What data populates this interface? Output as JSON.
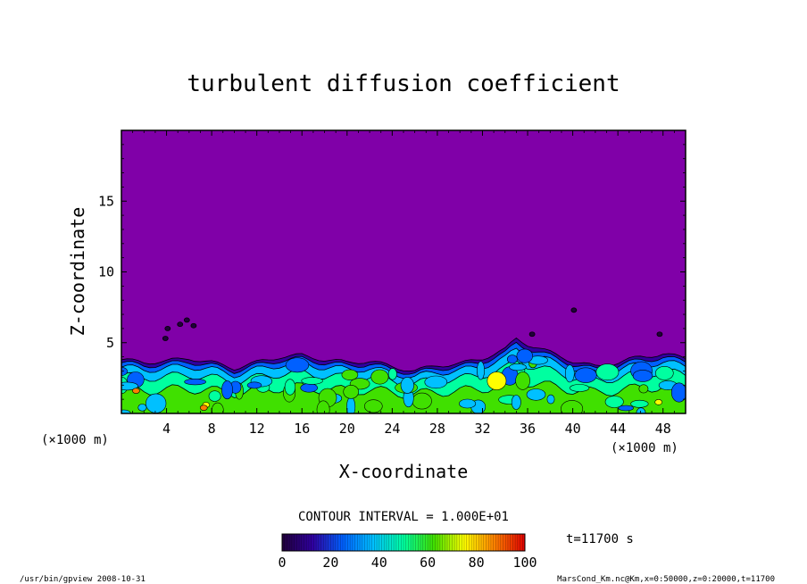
{
  "chart_data": {
    "type": "heatmap",
    "title": "turbulent diffusion coefficient",
    "xlabel": "X-coordinate",
    "ylabel": "Z-coordinate",
    "x_unit": "(×1000 m)",
    "y_unit": "(×1000 m)",
    "xlim": [
      0,
      50
    ],
    "ylim": [
      0,
      20
    ],
    "x_ticks": [
      4,
      8,
      12,
      16,
      20,
      24,
      28,
      32,
      36,
      40,
      44,
      48
    ],
    "y_ticks": [
      5,
      10,
      15
    ],
    "contour_interval_label": "CONTOUR INTERVAL = 1.000E+01",
    "time_label": "t=11700 s",
    "colorbar": {
      "min": 0,
      "max": 100,
      "ticks": [
        0,
        20,
        40,
        60,
        80,
        100
      ]
    },
    "background_value": 0,
    "boundary_layer_top_profile": [
      [
        0,
        3.8
      ],
      [
        2,
        3.6
      ],
      [
        4,
        3.7
      ],
      [
        6,
        3.9
      ],
      [
        8,
        3.6
      ],
      [
        10,
        3.2
      ],
      [
        12,
        3.6
      ],
      [
        14,
        4.0
      ],
      [
        16,
        4.1
      ],
      [
        18,
        3.8
      ],
      [
        20,
        3.6
      ],
      [
        22,
        3.7
      ],
      [
        24,
        3.3
      ],
      [
        26,
        3.0
      ],
      [
        28,
        3.4
      ],
      [
        30,
        3.5
      ],
      [
        32,
        3.9
      ],
      [
        34,
        4.5
      ],
      [
        35,
        5.3
      ],
      [
        36,
        4.9
      ],
      [
        38,
        4.3
      ],
      [
        40,
        3.7
      ],
      [
        42,
        3.3
      ],
      [
        44,
        3.6
      ],
      [
        46,
        4.0
      ],
      [
        48,
        4.2
      ],
      [
        50,
        3.9
      ]
    ],
    "colors": {
      "background": "#8000a8",
      "colormap": [
        "#20003a",
        "#3000a0",
        "#0060ff",
        "#00c0ff",
        "#00ffa0",
        "#40e000",
        "#ffff00",
        "#ff8000",
        "#e00000"
      ]
    }
  },
  "footer": {
    "left": "/usr/bin/gpview  2008-10-31",
    "right": "MarsCond_Km.nc@Km,x=0:50000,z=0:20000,t=11700"
  }
}
